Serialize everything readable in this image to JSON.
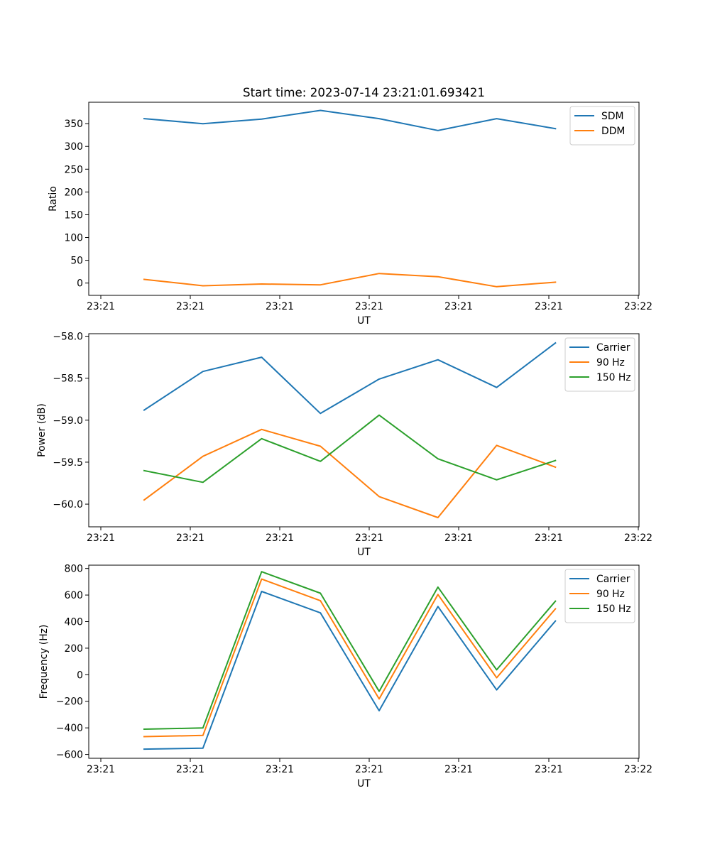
{
  "figure": {
    "title": "Start time: 2023-07-14 23:21:01.693421"
  },
  "colors": {
    "blue": "#1f77b4",
    "orange": "#ff7f0e",
    "green": "#2ca02c"
  },
  "chart_data": [
    {
      "type": "line",
      "title": "Start time: 2023-07-14 23:21:01.693421",
      "xlabel": "UT",
      "ylabel": "Ratio",
      "x_tick_labels": [
        "23:21",
        "23:21",
        "23:21",
        "23:21",
        "23:21",
        "23:21",
        "23:22"
      ],
      "y_ticks": [
        0,
        50,
        100,
        150,
        200,
        250,
        300,
        350
      ],
      "y_tick_labels": [
        "0",
        "50",
        "100",
        "150",
        "200",
        "250",
        "300",
        "350"
      ],
      "ylim": [
        -27,
        397
      ],
      "x": [
        0,
        1,
        2,
        3,
        4,
        5,
        6,
        7
      ],
      "series": [
        {
          "name": "SDM",
          "color": "#1f77b4",
          "values": [
            361,
            350,
            360,
            379,
            361,
            335,
            361,
            339
          ]
        },
        {
          "name": "DDM",
          "color": "#ff7f0e",
          "values": [
            8,
            -6,
            -2,
            -4,
            21,
            14,
            -8,
            2
          ]
        }
      ],
      "legend": "top-right",
      "grid": false
    },
    {
      "type": "line",
      "title": "",
      "xlabel": "UT",
      "ylabel": "Power (dB)",
      "x_tick_labels": [
        "23:21",
        "23:21",
        "23:21",
        "23:21",
        "23:21",
        "23:21",
        "23:22"
      ],
      "y_ticks": [
        -60.0,
        -59.5,
        -59.0,
        -58.5,
        -58.0
      ],
      "y_tick_labels": [
        "−60.0",
        "−59.5",
        "−59.0",
        "−58.5",
        "−58.0"
      ],
      "ylim": [
        -60.27,
        -57.97
      ],
      "x": [
        0,
        1,
        2,
        3,
        4,
        5,
        6,
        7
      ],
      "series": [
        {
          "name": "Carrier",
          "color": "#1f77b4",
          "values": [
            -58.88,
            -58.42,
            -58.25,
            -58.92,
            -58.51,
            -58.28,
            -58.61,
            -58.08
          ]
        },
        {
          "name": "90 Hz",
          "color": "#ff7f0e",
          "values": [
            -59.95,
            -59.43,
            -59.11,
            -59.31,
            -59.91,
            -60.16,
            -59.3,
            -59.56
          ]
        },
        {
          "name": "150 Hz",
          "color": "#2ca02c",
          "values": [
            -59.6,
            -59.74,
            -59.22,
            -59.49,
            -58.94,
            -59.46,
            -59.71,
            -59.48
          ]
        }
      ],
      "legend": "top-right",
      "grid": false
    },
    {
      "type": "line",
      "title": "",
      "xlabel": "UT",
      "ylabel": "Frequency (Hz)",
      "x_tick_labels": [
        "23:21",
        "23:21",
        "23:21",
        "23:21",
        "23:21",
        "23:21",
        "23:22"
      ],
      "y_ticks": [
        -600,
        -400,
        -200,
        0,
        200,
        400,
        600,
        800
      ],
      "y_tick_labels": [
        "−600",
        "−400",
        "−200",
        "0",
        "200",
        "400",
        "600",
        "800"
      ],
      "ylim": [
        -629,
        825
      ],
      "x": [
        0,
        1,
        2,
        3,
        4,
        5,
        6,
        7
      ],
      "series": [
        {
          "name": "Carrier",
          "color": "#1f77b4",
          "values": [
            -560,
            -553,
            627,
            466,
            -271,
            514,
            -114,
            405
          ]
        },
        {
          "name": "90 Hz",
          "color": "#ff7f0e",
          "values": [
            -466,
            -457,
            720,
            557,
            -182,
            604,
            -23,
            496
          ]
        },
        {
          "name": "150 Hz",
          "color": "#2ca02c",
          "values": [
            -410,
            -401,
            776,
            614,
            -125,
            660,
            37,
            554
          ]
        }
      ],
      "legend": "top-right",
      "grid": false
    }
  ]
}
